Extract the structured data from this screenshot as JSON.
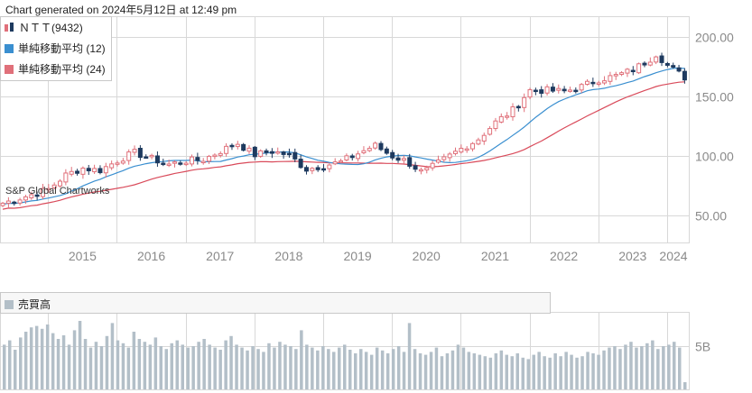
{
  "generated_label": "Chart generated on 2024年5月12日 at 12:49 pm",
  "watermark": "S&P Global Chartworks",
  "colors": {
    "up": "#e0707a",
    "down": "#1e3a5f",
    "ma12": "#3a8fd0",
    "ma24": "#d94a5a",
    "volume": "#b3bfc8",
    "grid": "#d8d8d8"
  },
  "legend": {
    "price": {
      "label": "ＮＴＴ(9432)",
      "icon": "candle-icon"
    },
    "ma12": {
      "label": "単純移動平均 (12)"
    },
    "ma24": {
      "label": "単純移動平均 (24)"
    }
  },
  "volume_legend": {
    "label": "売買高"
  },
  "chart_data": [
    {
      "type": "candlestick",
      "series_name": "ＮＴＴ(9432)",
      "interval": "monthly",
      "y_ticks": [
        "200.00",
        "150.00",
        "100.00",
        "50.00"
      ],
      "y_tick_values": [
        200,
        150,
        100,
        50
      ],
      "ylim": [
        27,
        217
      ],
      "x_ticks": [
        "2015",
        "2016",
        "2017",
        "2018",
        "2019",
        "2020",
        "2021",
        "2022",
        "2023",
        "2024"
      ],
      "x_range": [
        2014.3,
        2024.33
      ],
      "anchors_year_close": [
        [
          2014.3,
          60
        ],
        [
          2014.6,
          65
        ],
        [
          2015.0,
          72
        ],
        [
          2015.25,
          84
        ],
        [
          2015.5,
          90
        ],
        [
          2015.75,
          88
        ],
        [
          2016.0,
          96
        ],
        [
          2016.25,
          103
        ],
        [
          2016.5,
          98
        ],
        [
          2016.75,
          93
        ],
        [
          2017.0,
          96
        ],
        [
          2017.25,
          97
        ],
        [
          2017.5,
          104
        ],
        [
          2017.75,
          111
        ],
        [
          2018.0,
          101
        ],
        [
          2018.25,
          104
        ],
        [
          2018.5,
          101
        ],
        [
          2018.75,
          89
        ],
        [
          2019.0,
          92
        ],
        [
          2019.25,
          95
        ],
        [
          2019.5,
          102
        ],
        [
          2019.75,
          109
        ],
        [
          2020.0,
          100
        ],
        [
          2020.2,
          96
        ],
        [
          2020.45,
          86
        ],
        [
          2020.75,
          97
        ],
        [
          2021.0,
          106
        ],
        [
          2021.25,
          114
        ],
        [
          2021.5,
          128
        ],
        [
          2021.75,
          138
        ],
        [
          2022.0,
          155
        ],
        [
          2022.25,
          155
        ],
        [
          2022.5,
          154
        ],
        [
          2022.75,
          158
        ],
        [
          2023.0,
          164
        ],
        [
          2023.25,
          167
        ],
        [
          2023.5,
          172
        ],
        [
          2023.75,
          181
        ],
        [
          2023.85,
          186
        ],
        [
          2024.0,
          176
        ],
        [
          2024.2,
          168
        ],
        [
          2024.33,
          163
        ]
      ]
    },
    {
      "type": "bar",
      "series_name": "売買高",
      "y_ticks": [
        "5B"
      ],
      "values_rel": [
        0.62,
        0.68,
        0.55,
        0.72,
        0.8,
        0.86,
        0.88,
        0.84,
        0.9,
        0.78,
        0.7,
        0.75,
        0.62,
        0.82,
        0.95,
        0.7,
        0.58,
        0.66,
        0.6,
        0.74,
        0.92,
        0.68,
        0.64,
        0.58,
        0.8,
        0.7,
        0.66,
        0.62,
        0.72,
        0.6,
        0.56,
        0.64,
        0.68,
        0.62,
        0.58,
        0.6,
        0.66,
        0.7,
        0.62,
        0.58,
        0.55,
        0.68,
        0.74,
        0.62,
        0.58,
        0.54,
        0.6,
        0.56,
        0.52,
        0.64,
        0.58,
        0.66,
        0.62,
        0.6,
        0.56,
        0.82,
        0.62,
        0.58,
        0.54,
        0.6,
        0.56,
        0.52,
        0.58,
        0.62,
        0.55,
        0.5,
        0.56,
        0.52,
        0.48,
        0.58,
        0.54,
        0.5,
        0.56,
        0.6,
        0.52,
        0.92,
        0.56,
        0.5,
        0.48,
        0.52,
        0.58,
        0.46,
        0.5,
        0.54,
        0.62,
        0.58,
        0.52,
        0.5,
        0.48,
        0.46,
        0.44,
        0.5,
        0.54,
        0.48,
        0.46,
        0.5,
        0.44,
        0.42,
        0.48,
        0.52,
        0.46,
        0.44,
        0.5,
        0.46,
        0.52,
        0.48,
        0.44,
        0.46,
        0.52,
        0.5,
        0.48,
        0.54,
        0.58,
        0.6,
        0.56,
        0.62,
        0.66,
        0.58,
        0.6,
        0.64,
        0.68,
        0.56,
        0.6,
        0.62,
        0.66,
        0.58,
        0.1
      ]
    }
  ]
}
